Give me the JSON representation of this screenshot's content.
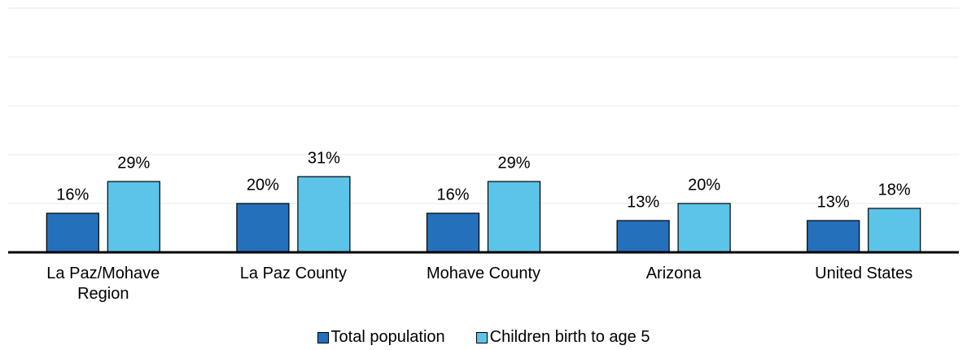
{
  "chart_data": {
    "type": "bar",
    "categories": [
      "La Paz/Mohave Region",
      "La Paz County",
      "Mohave County",
      "Arizona",
      "United States"
    ],
    "series": [
      {
        "name": "Total population",
        "color": "#2470bb",
        "values": [
          16,
          20,
          16,
          13,
          13
        ],
        "value_labels": [
          "16%",
          "20%",
          "16%",
          "13%",
          "13%"
        ]
      },
      {
        "name": "Children birth to age 5",
        "color": "#5bc4e8",
        "values": [
          29,
          31,
          29,
          20,
          18
        ],
        "value_labels": [
          "29%",
          "31%",
          "29%",
          "20%",
          "18%"
        ]
      }
    ],
    "ylim": [
      0,
      100
    ],
    "yticks": [
      0,
      20,
      40,
      60,
      80,
      100
    ],
    "grid": true,
    "legend": "bottom"
  }
}
